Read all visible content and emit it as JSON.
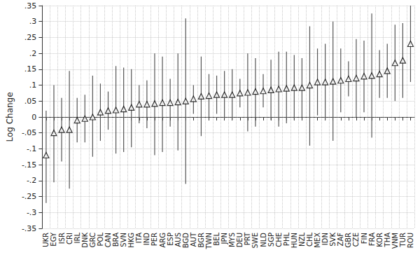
{
  "chart_data": {
    "type": "scatter",
    "ylabel": "Log Change",
    "categories": [
      "UKR",
      "EGY",
      "ISR",
      "CRI",
      "IRL",
      "DNK",
      "GRC",
      "POL",
      "CAN",
      "BRA",
      "SVN",
      "HKG",
      "ITA",
      "IND",
      "PER",
      "ARG",
      "ESP",
      "AUS",
      "BGD",
      "AUT",
      "BGR",
      "TWN",
      "BEL",
      "JPN",
      "MYS",
      "DEU",
      "PRT",
      "SWE",
      "NLD",
      "SGP",
      "CHE",
      "PHL",
      "HUN",
      "NZL",
      "CHL",
      "MEX",
      "IDN",
      "SVK",
      "ZAF",
      "GBR",
      "CZE",
      "FIN",
      "FRA",
      "KOR",
      "THA",
      "VNM",
      "TUR",
      "ROU"
    ],
    "values": [
      -0.12,
      -0.05,
      -0.04,
      -0.04,
      -0.01,
      -0.005,
      0.0,
      0.015,
      0.02,
      0.022,
      0.025,
      0.03,
      0.04,
      0.04,
      0.042,
      0.045,
      0.045,
      0.047,
      0.05,
      0.057,
      0.065,
      0.067,
      0.07,
      0.07,
      0.07,
      0.075,
      0.077,
      0.08,
      0.082,
      0.085,
      0.088,
      0.09,
      0.092,
      0.092,
      0.1,
      0.11,
      0.11,
      0.112,
      0.115,
      0.12,
      0.122,
      0.128,
      0.13,
      0.135,
      0.145,
      0.17,
      0.178,
      0.23
    ],
    "lower": [
      -0.27,
      -0.205,
      -0.14,
      -0.225,
      -0.08,
      -0.08,
      -0.125,
      -0.075,
      -0.04,
      -0.115,
      -0.11,
      -0.095,
      -0.02,
      -0.035,
      -0.12,
      -0.11,
      -0.03,
      -0.105,
      -0.21,
      0.01,
      -0.06,
      0.0,
      0.01,
      -0.005,
      -0.01,
      0.03,
      -0.045,
      -0.03,
      0.03,
      -0.01,
      -0.03,
      -0.02,
      -0.01,
      0.0,
      -0.09,
      0.005,
      -0.01,
      -0.075,
      0.015,
      0.065,
      0.0,
      0.015,
      -0.065,
      0.06,
      0.06,
      0.05,
      0.06,
      0.11
    ],
    "upper": [
      0.02,
      0.1,
      0.06,
      0.145,
      0.06,
      0.07,
      0.13,
      0.105,
      0.08,
      0.16,
      0.155,
      0.15,
      0.1,
      0.115,
      0.2,
      0.19,
      0.12,
      0.2,
      0.31,
      0.1,
      0.19,
      0.135,
      0.13,
      0.145,
      0.15,
      0.12,
      0.2,
      0.185,
      0.135,
      0.18,
      0.205,
      0.205,
      0.195,
      0.185,
      0.285,
      0.215,
      0.23,
      0.3,
      0.215,
      0.175,
      0.245,
      0.24,
      0.325,
      0.21,
      0.23,
      0.29,
      0.295,
      0.35
    ],
    "color": "#000000",
    "marker": "triangle",
    "grid": true,
    "reference_y": 0,
    "ylim": [
      -0.35,
      0.35
    ],
    "yticks": [
      {
        "value": -0.35,
        "label": "-.35"
      },
      {
        "value": -0.3,
        "label": "-.3"
      },
      {
        "value": -0.25,
        "label": "-.25"
      },
      {
        "value": -0.2,
        "label": "-.2"
      },
      {
        "value": -0.15,
        "label": "-.15"
      },
      {
        "value": -0.1,
        "label": "-.1"
      },
      {
        "value": -0.05,
        "label": "-.05"
      },
      0,
      {
        "value": 0.05,
        "label": ".05"
      },
      {
        "value": 0.1,
        "label": ".1"
      },
      {
        "value": 0.15,
        "label": ".15"
      },
      {
        "value": 0.2,
        "label": ".2"
      },
      {
        "value": 0.25,
        "label": ".25"
      },
      {
        "value": 0.3,
        "label": ".3"
      },
      {
        "value": 0.35,
        "label": ".35"
      }
    ]
  }
}
